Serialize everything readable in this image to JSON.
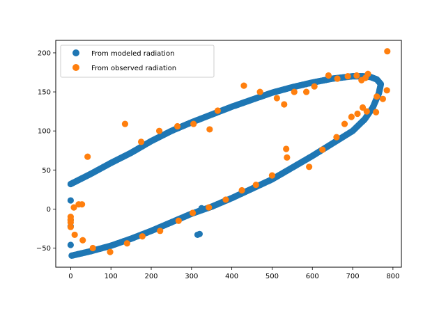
{
  "chart_data": {
    "type": "scatter",
    "title": "",
    "xlabel": "",
    "ylabel": "",
    "xlim": [
      -37,
      821
    ],
    "ylim": [
      -74.5,
      216.0
    ],
    "xticks": [
      0,
      100,
      200,
      300,
      400,
      500,
      600,
      700,
      800
    ],
    "yticks": [
      -50,
      0,
      50,
      100,
      150,
      200
    ],
    "grid": false,
    "legend_position": "top-left",
    "series": [
      {
        "name": "From modeled radiation",
        "color": "#1f77b4",
        "curve": {
          "upper": [
            [
              0,
              32
            ],
            [
              50,
              45
            ],
            [
              100,
              59
            ],
            [
              150,
              72
            ],
            [
              200,
              87
            ],
            [
              250,
              100
            ],
            [
              300,
              111
            ],
            [
              350,
              121
            ],
            [
              400,
              131
            ],
            [
              450,
              140
            ],
            [
              500,
              149
            ],
            [
              550,
              156
            ],
            [
              600,
              162
            ],
            [
              650,
              167
            ],
            [
              700,
              170
            ],
            [
              725,
              170
            ],
            [
              745,
              169
            ],
            [
              760,
              166
            ],
            [
              770,
              160
            ]
          ],
          "lower": [
            [
              770,
              160
            ],
            [
              765,
              148
            ],
            [
              750,
              130
            ],
            [
              730,
              115
            ],
            [
              700,
              100
            ],
            [
              650,
              84
            ],
            [
              600,
              68
            ],
            [
              550,
              53
            ],
            [
              500,
              38
            ],
            [
              450,
              26
            ],
            [
              400,
              14
            ],
            [
              350,
              3
            ],
            [
              300,
              -6
            ],
            [
              250,
              -17
            ],
            [
              200,
              -28
            ],
            [
              150,
              -38
            ],
            [
              100,
              -47
            ],
            [
              50,
              -54
            ],
            [
              0,
              -60
            ]
          ]
        },
        "points": [
          [
            0,
            11
          ],
          [
            0,
            -14
          ],
          [
            0,
            -22
          ],
          [
            0,
            -46
          ],
          [
            315,
            -33
          ],
          [
            320,
            -32
          ],
          [
            325,
            1
          ]
        ]
      },
      {
        "name": "From observed radiation",
        "color": "#ff7f0e",
        "points": [
          [
            0,
            -10
          ],
          [
            0,
            -14
          ],
          [
            0,
            -17
          ],
          [
            0,
            -23
          ],
          [
            8,
            2
          ],
          [
            10,
            -33
          ],
          [
            20,
            6
          ],
          [
            28,
            6
          ],
          [
            30,
            -40
          ],
          [
            42,
            67
          ],
          [
            55,
            -50
          ],
          [
            98,
            -55
          ],
          [
            135,
            109
          ],
          [
            140,
            -44
          ],
          [
            175,
            86
          ],
          [
            178,
            -35
          ],
          [
            220,
            100
          ],
          [
            222,
            -28
          ],
          [
            265,
            106
          ],
          [
            268,
            -15
          ],
          [
            305,
            109
          ],
          [
            303,
            -5
          ],
          [
            345,
            102
          ],
          [
            343,
            2
          ],
          [
            365,
            126
          ],
          [
            385,
            12
          ],
          [
            425,
            24
          ],
          [
            430,
            158
          ],
          [
            460,
            31
          ],
          [
            470,
            150
          ],
          [
            500,
            43
          ],
          [
            512,
            142
          ],
          [
            530,
            134
          ],
          [
            535,
            77
          ],
          [
            537,
            66
          ],
          [
            555,
            150
          ],
          [
            585,
            150
          ],
          [
            592,
            54
          ],
          [
            605,
            157
          ],
          [
            625,
            76
          ],
          [
            640,
            171
          ],
          [
            660,
            92
          ],
          [
            662,
            167
          ],
          [
            680,
            109
          ],
          [
            688,
            170
          ],
          [
            697,
            118
          ],
          [
            710,
            171
          ],
          [
            712,
            122
          ],
          [
            722,
            165
          ],
          [
            725,
            130
          ],
          [
            732,
            168
          ],
          [
            735,
            125
          ],
          [
            738,
            173
          ],
          [
            758,
            124
          ],
          [
            760,
            144
          ],
          [
            775,
            141
          ],
          [
            785,
            152
          ],
          [
            786,
            202
          ]
        ]
      }
    ]
  }
}
